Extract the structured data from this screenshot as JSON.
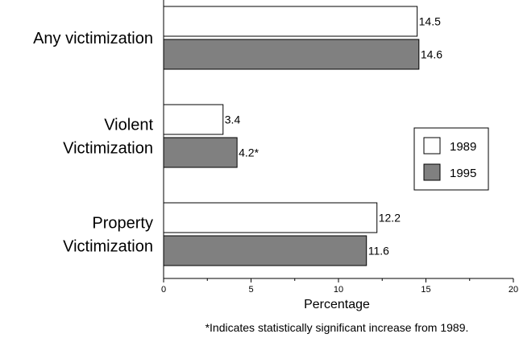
{
  "colors": {
    "1989": "#ffffff",
    "1995": "#808080",
    "axis": "#000000"
  },
  "chart_data": {
    "type": "bar",
    "orientation": "horizontal",
    "categories": [
      [
        "Any victimization"
      ],
      [
        "Violent",
        "Victimization"
      ],
      [
        "Property",
        "Victimization"
      ]
    ],
    "series": [
      {
        "name": "1989",
        "values": [
          14.5,
          3.4,
          12.2
        ],
        "labels": [
          "14.5",
          "3.4",
          "12.2"
        ]
      },
      {
        "name": "1995",
        "values": [
          14.6,
          4.2,
          11.6
        ],
        "labels": [
          "14.6",
          "4.2*",
          "11.6"
        ]
      }
    ],
    "xlabel": "Percentage",
    "xlim": [
      0,
      20
    ],
    "xticks": [
      0,
      5,
      10,
      15,
      20
    ],
    "legend_position": "right",
    "grid": false,
    "footnote": "*Indicates statistically significant increase from 1989."
  }
}
